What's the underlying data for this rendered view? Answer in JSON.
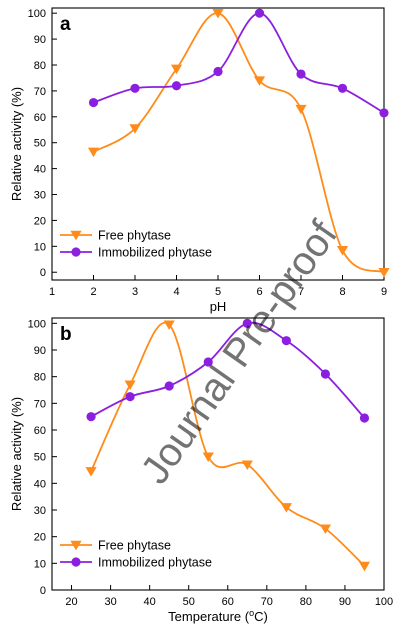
{
  "watermark": "Journal Pre-proof",
  "chart_data": [
    {
      "panel": "a",
      "type": "line",
      "xlabel": "pH",
      "ylabel": "Relative activity (%)",
      "xlim": [
        1,
        9
      ],
      "ylim": [
        -3,
        102
      ],
      "xticks": [
        "1",
        "2",
        "3",
        "4",
        "5",
        "6",
        "7",
        "8",
        "9"
      ],
      "yticks": [
        "0",
        "10",
        "20",
        "30",
        "40",
        "50",
        "60",
        "70",
        "80",
        "90",
        "100"
      ],
      "legend_position": "bottom-left",
      "series": [
        {
          "name": "Free phytase",
          "color": "#FF8C1A",
          "marker": "triangle-down",
          "x": [
            2,
            3,
            4,
            5,
            6,
            7,
            8,
            9
          ],
          "y": [
            46.5,
            55.5,
            78.5,
            100,
            74,
            63,
            8.5,
            0
          ]
        },
        {
          "name": "Immobilized phytase",
          "color": "#8B1FE0",
          "marker": "circle",
          "x": [
            2,
            3,
            4,
            5,
            6,
            7,
            8,
            9
          ],
          "y": [
            65.5,
            71,
            72,
            77.5,
            100,
            76.5,
            71,
            61.5
          ]
        }
      ]
    },
    {
      "panel": "b",
      "type": "line",
      "xlabel": "Temperature (oC)",
      "ylabel": "Relative activity (%)",
      "xlim": [
        15,
        100
      ],
      "ylim": [
        0,
        102
      ],
      "xticks": [
        "20",
        "30",
        "40",
        "50",
        "60",
        "70",
        "80",
        "90",
        "100"
      ],
      "yticks": [
        "0",
        "10",
        "20",
        "30",
        "40",
        "50",
        "60",
        "70",
        "80",
        "90",
        "100"
      ],
      "legend_position": "bottom-left",
      "series": [
        {
          "name": "Free phytase",
          "color": "#FF8C1A",
          "marker": "triangle-down",
          "x": [
            25,
            35,
            45,
            55,
            65,
            75,
            85,
            95
          ],
          "y": [
            44.5,
            77,
            99.5,
            50,
            47,
            31,
            23,
            9
          ]
        },
        {
          "name": "Immobilized phytase",
          "color": "#8B1FE0",
          "marker": "circle",
          "x": [
            25,
            35,
            45,
            55,
            65,
            75,
            85,
            95
          ],
          "y": [
            65,
            72.5,
            76.5,
            85.5,
            100,
            93.5,
            81,
            64.5
          ]
        }
      ]
    }
  ]
}
